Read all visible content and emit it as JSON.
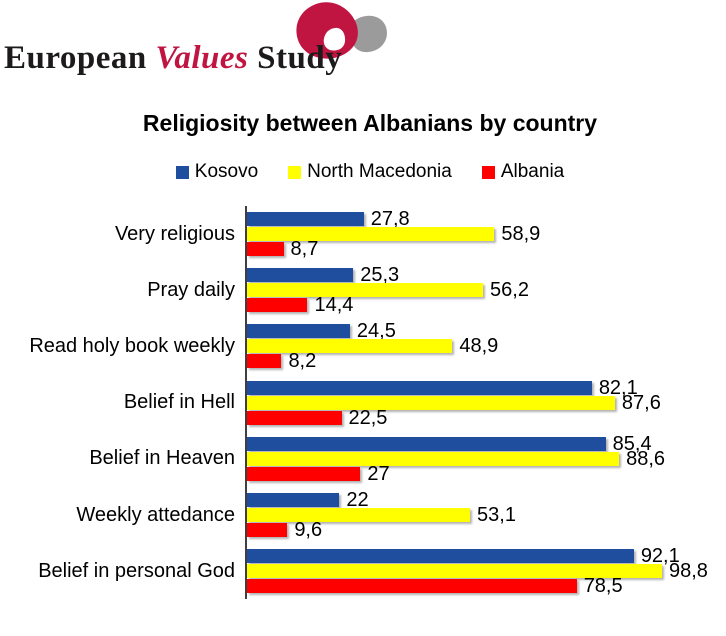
{
  "logo": {
    "word1": "European",
    "word2": "Values",
    "word3": "Study",
    "colors": {
      "crimson": "#c01441",
      "gray": "#9b9b9b",
      "text": "#1d1a1b"
    }
  },
  "chart_data": {
    "type": "bar",
    "orientation": "horizontal",
    "title": "Religiosity between Albanians by country",
    "categories": [
      "Very religious",
      "Pray daily",
      "Read holy book weekly",
      "Belief in Hell",
      "Belief in Heaven",
      "Weekly attedance",
      "Belief in personal God"
    ],
    "series": [
      {
        "name": "Kosovo",
        "color": "#1f4e9e",
        "values": [
          27.8,
          25.3,
          24.5,
          82.1,
          85.4,
          22,
          92.1
        ],
        "labels": [
          "27,8",
          "25,3",
          "24,5",
          "82,1",
          "85,4",
          "22",
          "92,1"
        ]
      },
      {
        "name": "North Macedonia",
        "color": "#ffff00",
        "values": [
          58.9,
          56.2,
          48.9,
          87.6,
          88.6,
          53.1,
          98.8
        ],
        "labels": [
          "58,9",
          "56,2",
          "48,9",
          "87,6",
          "88,6",
          "53,1",
          "98,8"
        ]
      },
      {
        "name": "Albania",
        "color": "#ff0000",
        "values": [
          8.7,
          14.4,
          8.2,
          22.5,
          27,
          9.6,
          78.5
        ],
        "labels": [
          "8,7",
          "14,4",
          "8,2",
          "22,5",
          "27",
          "9,6",
          "78,5"
        ]
      }
    ],
    "xlim": [
      0,
      100
    ],
    "value_axis_visible": false,
    "category_axis_line": true,
    "grid": false,
    "legend_position": "top",
    "value_labels_visible": true,
    "decimal_separator": ","
  }
}
